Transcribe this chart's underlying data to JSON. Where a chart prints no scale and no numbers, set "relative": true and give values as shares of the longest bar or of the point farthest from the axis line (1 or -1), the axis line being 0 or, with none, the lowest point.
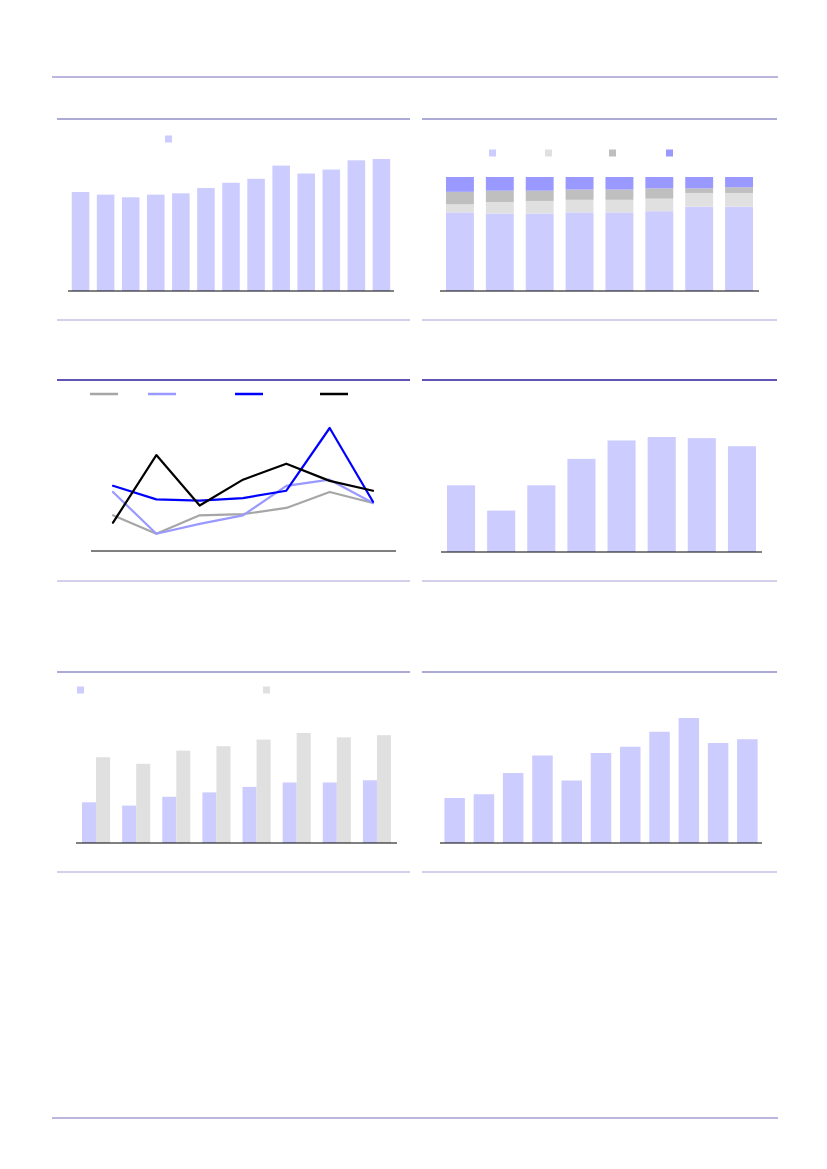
{
  "chart_data": [
    {
      "type": "bar",
      "relative": true,
      "categories": [
        null,
        null,
        null,
        null,
        null,
        null,
        null,
        null,
        null,
        null,
        null,
        null,
        null
      ],
      "color": "#ccccff",
      "values": [
        0.75,
        0.73,
        0.71,
        0.73,
        0.74,
        0.78,
        0.82,
        0.85,
        0.95,
        0.89,
        0.92,
        0.99,
        1
      ]
    },
    {
      "type": "bar",
      "relative": true,
      "stacked": true,
      "categories": [
        null,
        null,
        null,
        null,
        null,
        null,
        null,
        null
      ],
      "series": [
        {
          "color": "#ccccff",
          "values": [
            0.69,
            0.68,
            0.68,
            0.69,
            0.69,
            0.7,
            0.74,
            0.74
          ]
        },
        {
          "color": "#e0e0e0",
          "values": [
            0.07,
            0.1,
            0.11,
            0.11,
            0.11,
            0.11,
            0.12,
            0.12
          ]
        },
        {
          "color": "#bfbfbf",
          "values": [
            0.11,
            0.1,
            0.09,
            0.09,
            0.09,
            0.09,
            0.04,
            0.05
          ]
        },
        {
          "color": "#9999ff",
          "values": [
            0.13,
            0.12,
            0.12,
            0.11,
            0.11,
            0.1,
            0.1,
            0.09
          ]
        }
      ]
    },
    {
      "type": "line",
      "relative": true,
      "categories": [
        null,
        null,
        null,
        null,
        null,
        null,
        null
      ],
      "series": [
        {
          "color": "#a6a6a6",
          "values": [
            0.29,
            0.14,
            0.29,
            0.3,
            0.35,
            0.48,
            0.39
          ]
        },
        {
          "color": "#9999ff",
          "values": [
            0.48,
            0.14,
            0.22,
            0.29,
            0.53,
            0.58,
            0.39
          ]
        },
        {
          "color": "#0000ff",
          "values": [
            0.53,
            0.42,
            0.41,
            0.43,
            0.49,
            1,
            0.4
          ]
        },
        {
          "color": "#000000",
          "values": [
            0.23,
            0.78,
            0.37,
            0.58,
            0.71,
            0.57,
            0.49
          ]
        }
      ]
    },
    {
      "type": "bar",
      "relative": true,
      "categories": [
        null,
        null,
        null,
        null,
        null,
        null,
        null,
        null
      ],
      "color": "#ccccff",
      "values": [
        0.58,
        0.36,
        0.58,
        0.81,
        0.97,
        1,
        0.99,
        0.92
      ]
    },
    {
      "type": "bar",
      "relative": true,
      "categories": [
        null,
        null,
        null,
        null,
        null,
        null,
        null,
        null
      ],
      "series": [
        {
          "color": "#ccccff",
          "values": [
            0.37,
            0.34,
            0.42,
            0.46,
            0.51,
            0.55,
            0.55,
            0.57
          ]
        },
        {
          "color": "#e0e0e0",
          "values": [
            0.78,
            0.72,
            0.84,
            0.88,
            0.94,
            1,
            0.96,
            0.98
          ]
        }
      ]
    },
    {
      "type": "bar",
      "relative": true,
      "categories": [
        null,
        null,
        null,
        null,
        null,
        null,
        null,
        null,
        null,
        null,
        null
      ],
      "color": "#ccccff",
      "values": [
        0.36,
        0.39,
        0.56,
        0.7,
        0.5,
        0.72,
        0.77,
        0.89,
        1,
        0.8,
        0.83
      ]
    }
  ]
}
